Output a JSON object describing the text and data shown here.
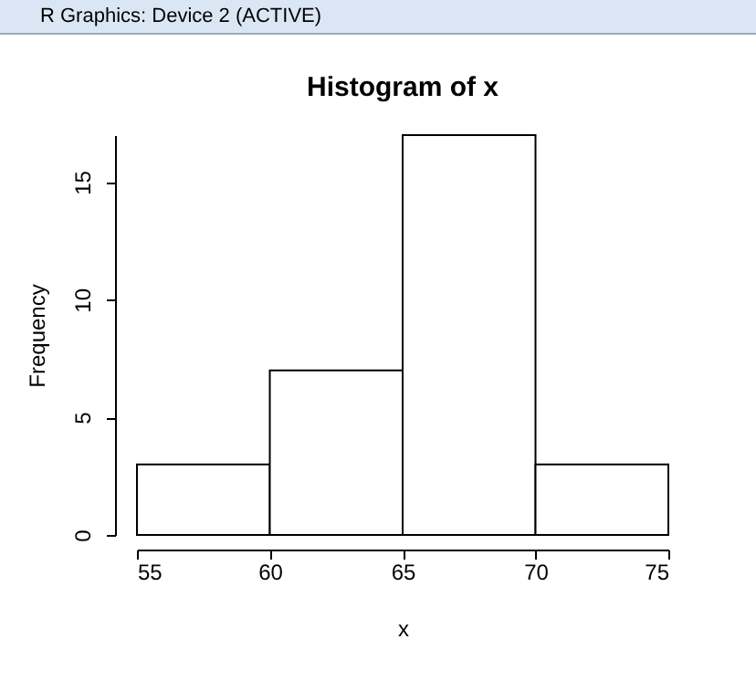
{
  "chart_data": {
    "type": "histogram",
    "title": "Histogram of x",
    "xlabel": "x",
    "ylabel": "Frequency",
    "annotations": [
      "R Graphics: Device 2 (ACTIVE)"
    ],
    "bins": [
      55,
      60,
      65,
      70,
      75
    ],
    "values": [
      3,
      7,
      17,
      3
    ],
    "color": "#ffffff",
    "xlim": [
      55,
      75
    ],
    "xticks": [
      55,
      60,
      65,
      70,
      75
    ],
    "ylim": [
      0,
      17
    ],
    "yticks": [
      0,
      5,
      10,
      15
    ],
    "grid": false
  }
}
